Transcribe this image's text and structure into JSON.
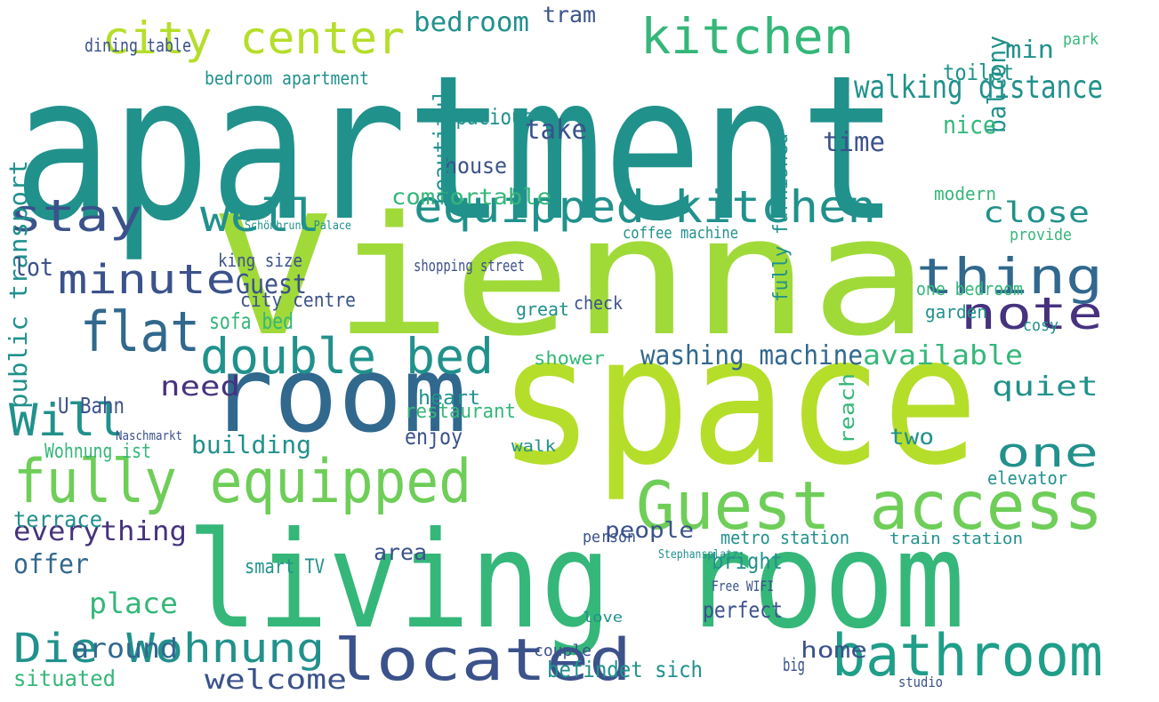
{
  "words": [
    "apartment",
    "Vienna",
    "space",
    "living room",
    "Guest access",
    "room",
    "fully equipped",
    "double bed",
    "flat",
    "minute",
    "stay",
    "well",
    "equipped kitchen",
    "city center",
    "kitchen",
    "bathroom",
    "located",
    "Die Wohnung",
    "walking distance",
    "thing",
    "note",
    "one",
    "Will",
    "people",
    "washing machine",
    "available",
    "quiet",
    "close",
    "welcome",
    "everything",
    "offer",
    "place",
    "around",
    "need",
    "house",
    "comfortable",
    "public transport",
    "beautiful",
    "building",
    "enjoy",
    "restaurant",
    "heart",
    "perfect",
    "home",
    "befindet sich",
    "bedroom",
    "spacious",
    "tram",
    "take",
    "time",
    "balcony",
    "nice",
    "toilet",
    "min",
    "Guest",
    "sofa bed",
    "lot",
    "terrace",
    "situated",
    "area",
    "bright",
    "metro station",
    "smart TV",
    "city centre",
    "dining table",
    "bedroom apartment",
    "shower",
    "garden",
    "elevator",
    "shopping street",
    "coffee machine",
    "king size",
    "U Bahn",
    "Wohnung ist",
    "fully furnished",
    "one bedroom",
    "walk",
    "person",
    "check",
    "great",
    "cosy",
    "two",
    "reach",
    "train station",
    "provide",
    "modern",
    "studio",
    "Schönbrunn Palace",
    "Naschmarkt",
    "Stephansplatz",
    "Free WIFI",
    "love",
    "couple",
    "big",
    "park"
  ]
}
